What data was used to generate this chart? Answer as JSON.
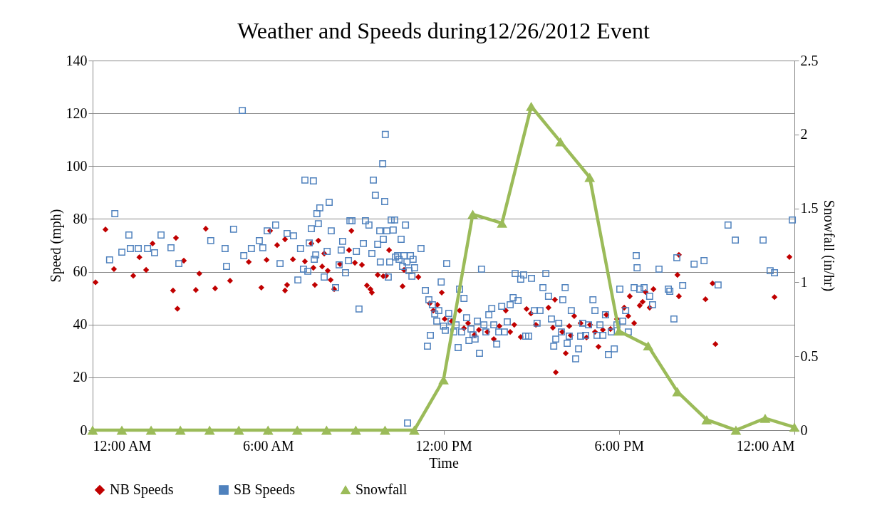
{
  "chart_data": {
    "type": "scatter",
    "title": "Weather and Speeds during12/26/2012 Event",
    "xlabel": "Time",
    "ylabel": "Speed (mph)",
    "y2label": "Snowfall (in/hr)",
    "xlim": [
      0,
      24
    ],
    "xticks": [
      {
        "value": 0,
        "label": "12:00 AM"
      },
      {
        "value": 6,
        "label": "6:00 AM"
      },
      {
        "value": 12,
        "label": "12:00 PM"
      },
      {
        "value": 18,
        "label": "6:00 PM"
      },
      {
        "value": 24,
        "label": "12:00 AM"
      }
    ],
    "ylim": [
      0,
      140
    ],
    "yticks": [
      0,
      20,
      40,
      60,
      80,
      100,
      120,
      140
    ],
    "y2lim": [
      0,
      2.5
    ],
    "y2ticks": [
      0,
      0.5,
      1,
      1.5,
      2,
      2.5
    ],
    "grid": "y",
    "legend": "bottom",
    "series": [
      {
        "name": "NB Speeds",
        "marker": "diamond",
        "color": "#c00000",
        "x": [
          0.1,
          0.44,
          0.73,
          1.39,
          1.6,
          1.83,
          2.05,
          2.75,
          2.85,
          2.9,
          3.12,
          3.53,
          3.65,
          3.87,
          4.19,
          4.7,
          5.34,
          5.77,
          5.95,
          6.07,
          6.31,
          6.58,
          6.58,
          6.65,
          6.85,
          7.26,
          7.48,
          7.55,
          7.6,
          7.72,
          7.85,
          7.92,
          8.04,
          8.14,
          8.26,
          8.46,
          8.77,
          8.85,
          8.97,
          9.21,
          9.38,
          9.5,
          9.55,
          9.75,
          9.94,
          10.04,
          10.14,
          10.6,
          10.65,
          11.14,
          11.53,
          11.65,
          11.79,
          11.94,
          12.04,
          12.28,
          12.55,
          12.7,
          12.84,
          13.06,
          13.21,
          13.5,
          13.72,
          13.91,
          14.13,
          14.28,
          14.42,
          14.64,
          14.84,
          14.99,
          15.16,
          15.59,
          15.74,
          15.81,
          15.84,
          16.06,
          16.18,
          16.3,
          16.35,
          16.47,
          16.69,
          16.89,
          17.01,
          17.18,
          17.3,
          17.45,
          17.57,
          17.71,
          17.93,
          18.18,
          18.32,
          18.37,
          18.52,
          18.71,
          18.81,
          18.91,
          19.05,
          19.18,
          20.0,
          20.05,
          20.05,
          20.96,
          21.2,
          21.3,
          23.32,
          23.83
        ],
        "values": [
          56,
          76,
          61,
          58.5,
          65.5,
          60.7,
          70.7,
          52.9,
          72.8,
          46,
          64.2,
          53.1,
          59.3,
          76.3,
          53.7,
          56.6,
          63.7,
          54,
          64.5,
          75.5,
          70.1,
          72.3,
          52.9,
          55,
          64.7,
          63.9,
          70.7,
          61.5,
          55,
          71.8,
          62,
          66.9,
          60.4,
          56.9,
          53.4,
          62.9,
          68.2,
          75.5,
          63.4,
          62.6,
          54.8,
          53.4,
          52.1,
          58.8,
          58.3,
          58.5,
          68.2,
          54.5,
          60.7,
          58,
          48,
          45.3,
          47.5,
          52.1,
          42.1,
          41.3,
          45.3,
          38.6,
          40.5,
          36.1,
          38,
          37.2,
          34.5,
          39.4,
          45.3,
          37.2,
          39.9,
          35.3,
          45.9,
          44.2,
          39.9,
          46.4,
          38.8,
          49.4,
          21.9,
          37.2,
          29.1,
          39.4,
          35.9,
          43.2,
          40.5,
          35.1,
          39.9,
          37.2,
          31.6,
          38,
          43.7,
          38.3,
          42.1,
          46.4,
          43.2,
          50.7,
          40.5,
          47.2,
          48.6,
          52.3,
          46.4,
          53.4,
          58.8,
          66.4,
          50.7,
          49.6,
          55.6,
          32.6,
          50.4,
          65.6
        ]
      },
      {
        "name": "SB Speeds",
        "marker": "square",
        "color": "#4f81bd",
        "x": [
          0.58,
          0.76,
          1.0,
          1.24,
          1.29,
          1.56,
          1.88,
          2.12,
          2.34,
          2.68,
          2.95,
          4.04,
          4.53,
          4.58,
          4.82,
          5.12,
          5.17,
          5.43,
          5.7,
          5.82,
          5.97,
          6.26,
          6.41,
          6.65,
          6.87,
          7.02,
          7.11,
          7.21,
          7.26,
          7.36,
          7.41,
          7.48,
          7.55,
          7.58,
          7.63,
          7.67,
          7.72,
          7.77,
          7.92,
          8.02,
          8.09,
          8.16,
          8.31,
          8.43,
          8.5,
          8.55,
          8.65,
          8.75,
          8.8,
          8.87,
          9.02,
          9.11,
          9.26,
          9.33,
          9.45,
          9.55,
          9.6,
          9.67,
          9.75,
          9.82,
          9.84,
          9.92,
          9.94,
          9.99,
          10.01,
          10.06,
          10.11,
          10.16,
          10.21,
          10.28,
          10.33,
          10.36,
          10.43,
          10.48,
          10.55,
          10.6,
          10.65,
          10.7,
          10.75,
          10.77,
          10.82,
          10.87,
          10.92,
          10.96,
          11.01,
          11.23,
          11.38,
          11.45,
          11.5,
          11.55,
          11.62,
          11.7,
          11.77,
          11.84,
          11.92,
          12.0,
          12.06,
          12.11,
          12.18,
          12.26,
          12.35,
          12.43,
          12.5,
          12.55,
          12.62,
          12.7,
          12.79,
          12.87,
          12.94,
          13.01,
          13.08,
          13.16,
          13.23,
          13.3,
          13.38,
          13.45,
          13.55,
          13.65,
          13.72,
          13.82,
          13.89,
          13.99,
          14.08,
          14.18,
          14.28,
          14.38,
          14.45,
          14.55,
          14.64,
          14.74,
          14.81,
          14.91,
          15.01,
          15.11,
          15.2,
          15.3,
          15.4,
          15.5,
          15.59,
          15.69,
          15.77,
          15.84,
          15.94,
          16.03,
          16.08,
          16.16,
          16.23,
          16.3,
          16.37,
          16.52,
          16.62,
          16.69,
          16.76,
          16.86,
          16.96,
          17.11,
          17.18,
          17.25,
          17.35,
          17.45,
          17.54,
          17.64,
          17.74,
          17.84,
          17.93,
          18.03,
          18.13,
          18.23,
          18.32,
          18.52,
          18.59,
          18.62,
          18.71,
          18.86,
          19.05,
          19.15,
          19.37,
          19.69,
          19.74,
          19.88,
          19.98,
          20.18,
          20.57,
          20.91,
          21.39,
          21.73,
          21.98,
          22.93,
          23.17,
          23.32,
          23.93
        ],
        "values": [
          64.5,
          82,
          67.4,
          73.9,
          68.8,
          68.8,
          68.8,
          67.2,
          73.9,
          69.1,
          63.1,
          71.8,
          68.8,
          62,
          76.1,
          121.1,
          66.1,
          68.8,
          71.8,
          69.1,
          75.5,
          77.7,
          63.1,
          74.5,
          73.6,
          56.9,
          68.8,
          61,
          94.7,
          60.2,
          70.9,
          76.3,
          94.4,
          64.7,
          66.4,
          82,
          78.2,
          84.2,
          58,
          67.7,
          86.3,
          75.5,
          54,
          62.6,
          68.2,
          71.5,
          59.6,
          64.2,
          79.3,
          79.3,
          67.7,
          45.9,
          70.7,
          79.3,
          77.7,
          66.9,
          94.7,
          89,
          70.4,
          75.5,
          63.7,
          100.9,
          72.3,
          86.6,
          112,
          75.5,
          58,
          63.7,
          79.6,
          75.8,
          79.6,
          65.6,
          66.1,
          64.7,
          72.3,
          62,
          66.1,
          77.7,
          63.7,
          2.7,
          60.4,
          66.1,
          58.3,
          64.7,
          61.5,
          68.8,
          52.9,
          31.8,
          49.4,
          35.9,
          47.5,
          44,
          41.3,
          45.3,
          56.1,
          39.4,
          37.8,
          63.1,
          44.2,
          41.3,
          37.2,
          39.9,
          31.3,
          53.4,
          37.2,
          49.9,
          42.6,
          34,
          38.3,
          36.1,
          34.5,
          41.3,
          29.1,
          61,
          39.9,
          37.2,
          43.7,
          46.1,
          39.9,
          32.6,
          37.2,
          46.9,
          37.2,
          41,
          47.5,
          50.2,
          59.3,
          49.1,
          57.2,
          58.8,
          35.6,
          35.6,
          57.5,
          45.3,
          40.5,
          45.3,
          54,
          59.3,
          50.7,
          42.1,
          31.8,
          34.5,
          40.5,
          37.2,
          49.4,
          54,
          32.9,
          35.6,
          45.3,
          27,
          30.8,
          35.6,
          40.5,
          35.9,
          39.9,
          49.4,
          45.3,
          35.9,
          39.9,
          35.9,
          43.7,
          28.6,
          37.2,
          30.8,
          39.9,
          53.4,
          41.3,
          45.3,
          37.2,
          54,
          66.1,
          61.5,
          53.4,
          54,
          50.7,
          47.5,
          61,
          53.4,
          52.6,
          42.1,
          65.3,
          54.8,
          62.9,
          64.2,
          55,
          77.7,
          72,
          72,
          60.4,
          59.6,
          79.6
        ]
      },
      {
        "name": "Snowfall",
        "type": "line",
        "marker": "triangle",
        "axis": "y2",
        "color": "#9bbb59",
        "x": [
          0,
          1,
          2,
          3,
          4,
          5,
          6,
          7,
          8,
          9,
          10,
          11,
          12,
          13,
          14,
          15,
          16,
          17,
          18,
          19,
          20,
          21,
          22,
          23,
          24
        ],
        "values": [
          0,
          0,
          0,
          0,
          0,
          0,
          0,
          0,
          0,
          0,
          0,
          0,
          0.34,
          1.46,
          1.4,
          2.19,
          1.95,
          1.71,
          0.67,
          0.57,
          0.26,
          0.07,
          0,
          0.08,
          0.02
        ]
      }
    ]
  }
}
